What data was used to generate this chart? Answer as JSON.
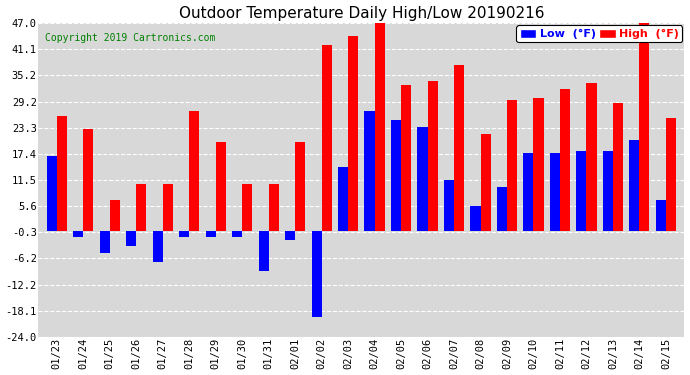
{
  "title": "Outdoor Temperature Daily High/Low 20190216",
  "copyright": "Copyright 2019 Cartronics.com",
  "legend_low": "Low  (°F)",
  "legend_high": "High  (°F)",
  "dates": [
    "01/23",
    "01/24",
    "01/25",
    "01/26",
    "01/27",
    "01/28",
    "01/29",
    "01/30",
    "01/31",
    "02/01",
    "02/02",
    "02/03",
    "02/04",
    "02/05",
    "02/06",
    "02/07",
    "02/08",
    "02/09",
    "02/10",
    "02/11",
    "02/12",
    "02/13",
    "02/14",
    "02/15"
  ],
  "high": [
    26.0,
    23.0,
    7.0,
    10.5,
    10.5,
    27.0,
    20.0,
    10.5,
    10.5,
    20.0,
    42.0,
    44.0,
    48.0,
    33.0,
    34.0,
    37.5,
    22.0,
    29.5,
    30.0,
    32.0,
    33.5,
    29.0,
    47.0,
    25.5
  ],
  "low": [
    17.0,
    -1.5,
    -5.0,
    -3.5,
    -7.0,
    -1.5,
    -1.5,
    -1.5,
    -9.0,
    -2.0,
    -19.5,
    14.5,
    27.0,
    25.0,
    23.5,
    11.5,
    5.5,
    10.0,
    17.5,
    17.5,
    18.0,
    18.0,
    20.5,
    7.0
  ],
  "ylim": [
    -24.0,
    47.0
  ],
  "yticks": [
    -24.0,
    -18.1,
    -12.2,
    -6.2,
    -0.3,
    5.6,
    11.5,
    17.4,
    23.3,
    29.2,
    35.2,
    41.1,
    47.0
  ],
  "ytick_labels": [
    "-24.0",
    "-18.1",
    "-12.2",
    "-6.2",
    "-0.3",
    "5.6",
    "11.5",
    "17.4",
    "23.3",
    "29.2",
    "35.2",
    "41.1",
    "47.0"
  ],
  "bar_width": 0.38,
  "high_color": "#FF0000",
  "low_color": "#0000FF",
  "bg_color": "#FFFFFF",
  "plot_bg_color": "#D8D8D8",
  "grid_color": "#FFFFFF",
  "title_fontsize": 11,
  "copyright_fontsize": 7,
  "tick_fontsize": 7.5,
  "legend_fontsize": 8
}
